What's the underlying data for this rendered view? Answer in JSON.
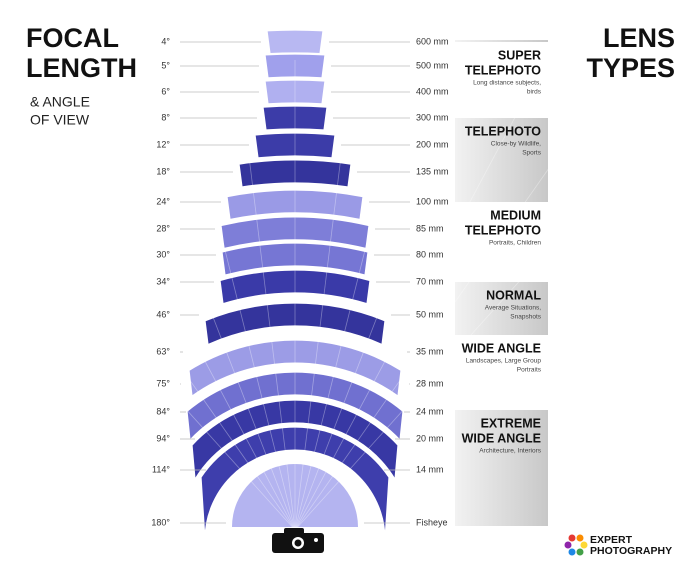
{
  "header": {
    "title_lines": [
      "FOCAL",
      "LENGTH"
    ],
    "subtitle_lines": [
      "& ANGLE",
      "OF VIEW"
    ],
    "side_title_lines": [
      "LENS",
      "TYPES"
    ]
  },
  "rows": [
    {
      "angle": "4°",
      "focal": "600 mm"
    },
    {
      "angle": "5°",
      "focal": "500 mm"
    },
    {
      "angle": "6°",
      "focal": "400 mm"
    },
    {
      "angle": "8°",
      "focal": "300 mm"
    },
    {
      "angle": "12°",
      "focal": "200 mm"
    },
    {
      "angle": "18°",
      "focal": "135 mm"
    },
    {
      "angle": "24°",
      "focal": "100 mm"
    },
    {
      "angle": "28°",
      "focal": "85 mm"
    },
    {
      "angle": "30°",
      "focal": "80 mm"
    },
    {
      "angle": "34°",
      "focal": "70 mm"
    },
    {
      "angle": "46°",
      "focal": "50 mm"
    },
    {
      "angle": "63°",
      "focal": "35 mm"
    },
    {
      "angle": "75°",
      "focal": "28 mm"
    },
    {
      "angle": "84°",
      "focal": "24 mm"
    },
    {
      "angle": "94°",
      "focal": "20 mm"
    },
    {
      "angle": "114°",
      "focal": "14 mm"
    },
    {
      "angle": "180°",
      "focal": "Fisheye"
    }
  ],
  "lens_types": [
    {
      "name_lines": [
        "SUPER",
        "TELEPHOTO"
      ],
      "desc_lines": [
        "Long distance subjects,",
        "birds"
      ]
    },
    {
      "name_lines": [
        "TELEPHOTO"
      ],
      "desc_lines": [
        "Close-by Wildlife,",
        "Sports"
      ]
    },
    {
      "name_lines": [
        "MEDIUM",
        "TELEPHOTO"
      ],
      "desc_lines": [
        "Portraits, Children"
      ]
    },
    {
      "name_lines": [
        "NORMAL"
      ],
      "desc_lines": [
        "Average Situations,",
        "Snapshots"
      ]
    },
    {
      "name_lines": [
        "WIDE ANGLE"
      ],
      "desc_lines": [
        "Landscapes, Large Group",
        "Portraits"
      ]
    },
    {
      "name_lines": [
        "EXTREME",
        "WIDE ANGLE"
      ],
      "desc_lines": [
        "Architecture, Interiors"
      ]
    }
  ],
  "logo": {
    "lines": [
      "EXPERT",
      "PHOTOGRAPHY"
    ]
  }
}
